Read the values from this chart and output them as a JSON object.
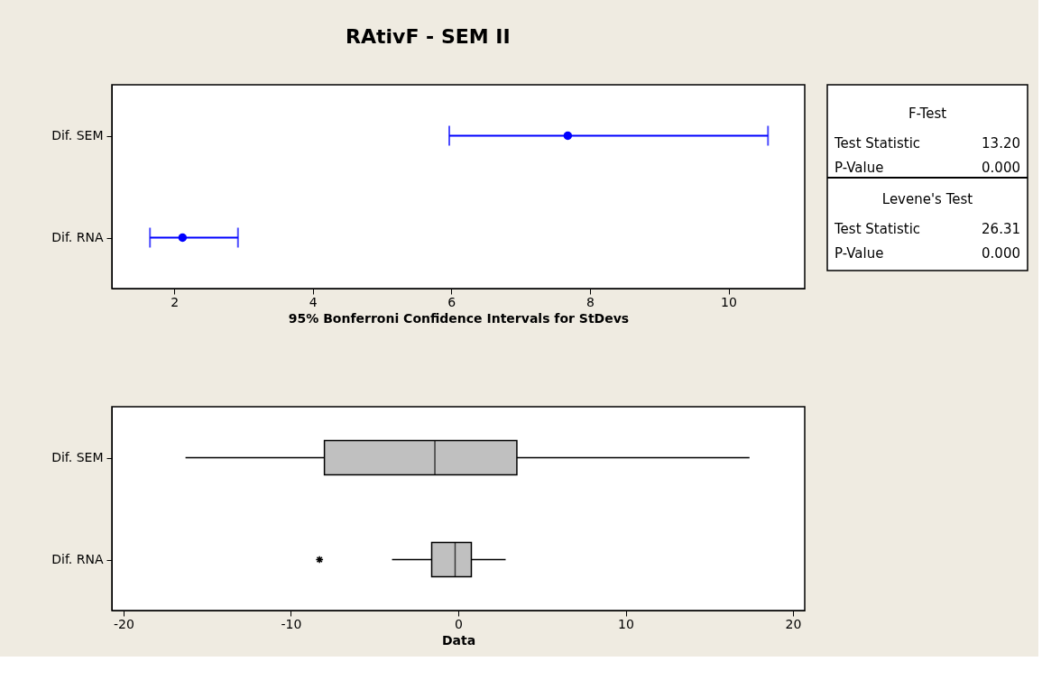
{
  "chart_data": [
    {
      "type": "scatter",
      "title": "RAtivF - SEM II",
      "orientation": "horizontal",
      "categories": [
        "Dif. SEM",
        "Dif. RNA"
      ],
      "values": [
        7.68,
        2.12
      ],
      "errors": [
        [
          5.97,
          10.57
        ],
        [
          1.65,
          2.92
        ]
      ],
      "color": "#0000ff",
      "marker": "circle",
      "xlim": [
        1.1,
        11.1
      ],
      "xticks": [
        2,
        4,
        6,
        8,
        10
      ],
      "xlabel": "95% Bonferroni Confidence Intervals for StDevs",
      "grid": false
    },
    {
      "type": "box",
      "orientation": "horizontal",
      "categories": [
        "Dif. SEM",
        "Dif. RNA"
      ],
      "color": "#c0c0c0",
      "boxes": [
        {
          "low": -16.3,
          "q1": -8.0,
          "median": -1.4,
          "q3": 3.5,
          "high": 17.4
        },
        {
          "low": -3.96,
          "q1": -1.59,
          "median": -0.19,
          "q3": 0.78,
          "high": 2.83,
          "outliers": [
            -8.29
          ]
        }
      ],
      "xlim": [
        -20.7,
        20.7
      ],
      "xticks": [
        -20,
        -10,
        0,
        10,
        20
      ],
      "xlabel": "Data",
      "grid": false
    },
    {
      "type": "other",
      "annotations": [
        "F-Test",
        "Test Statistic",
        "13.20",
        "P-Value",
        "0.000",
        "Levene's Test",
        "Test Statistic",
        "26.31",
        "P-Value",
        "0.000"
      ]
    }
  ]
}
